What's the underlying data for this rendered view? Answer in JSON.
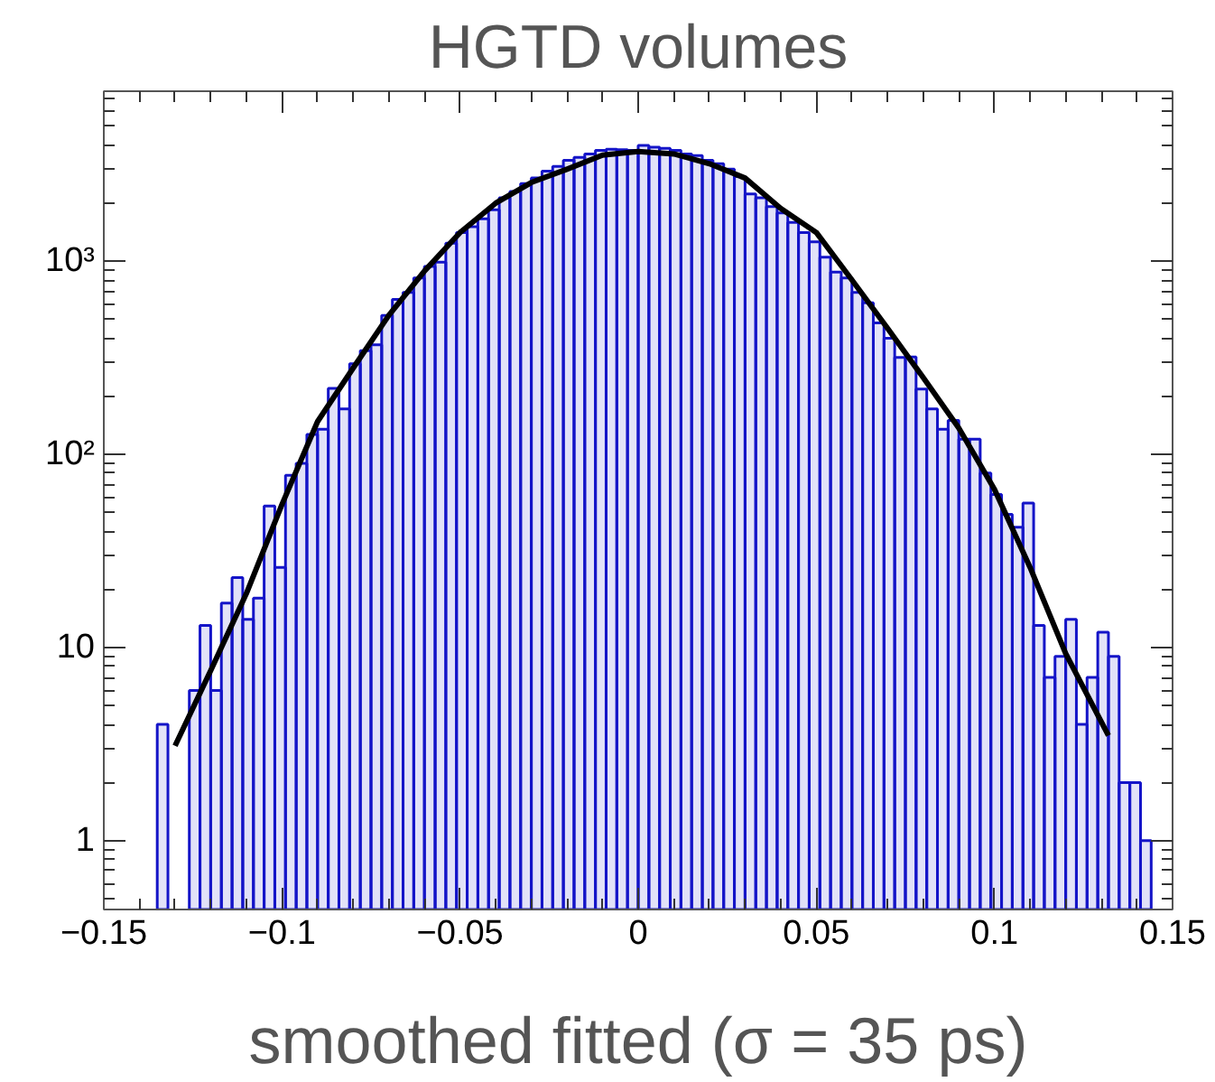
{
  "chart_data": {
    "type": "histogram",
    "title": "HGTD volumes",
    "xlabel": "smoothed fitted (σ = 35 ps)",
    "bins": [
      -0.15,
      -0.147,
      -0.144,
      -0.141,
      -0.138,
      -0.135,
      -0.132,
      -0.129,
      -0.126,
      -0.123,
      -0.12,
      -0.117,
      -0.114,
      -0.111,
      -0.108,
      -0.105,
      -0.102,
      -0.099,
      -0.096,
      -0.093,
      -0.09,
      -0.087,
      -0.084,
      -0.081,
      -0.078,
      -0.075,
      -0.072,
      -0.069,
      -0.066,
      -0.063,
      -0.06,
      -0.057,
      -0.054,
      -0.051,
      -0.048,
      -0.045,
      -0.042,
      -0.039,
      -0.036,
      -0.033,
      -0.03,
      -0.027,
      -0.024,
      -0.021,
      -0.018,
      -0.015,
      -0.012,
      -0.009,
      -0.006,
      -0.003,
      0,
      0.003,
      0.006,
      0.009,
      0.012,
      0.015,
      0.018,
      0.021,
      0.024,
      0.027,
      0.03,
      0.033,
      0.036,
      0.039,
      0.042,
      0.045,
      0.048,
      0.051,
      0.054,
      0.057,
      0.06,
      0.063,
      0.066,
      0.069,
      0.072,
      0.075,
      0.078,
      0.081,
      0.084,
      0.087,
      0.09,
      0.093,
      0.096,
      0.099,
      0.102,
      0.105,
      0.108,
      0.111,
      0.114,
      0.117,
      0.12,
      0.123,
      0.126,
      0.129,
      0.132,
      0.135,
      0.138,
      0.141,
      0.144,
      0.147,
      0.15
    ],
    "series": [
      {
        "color": "#1414c8",
        "values": [
          null,
          null,
          null,
          null,
          null,
          4,
          null,
          null,
          6,
          13,
          6,
          17,
          23,
          14,
          18,
          54,
          26,
          78,
          90,
          127,
          135,
          220,
          172,
          295,
          345,
          370,
          525,
          635,
          690,
          820,
          940,
          990,
          1240,
          1410,
          1510,
          1660,
          1850,
          2130,
          2300,
          2530,
          2700,
          2930,
          3100,
          3330,
          3450,
          3600,
          3750,
          3800,
          3780,
          3750,
          3980,
          3900,
          3850,
          3750,
          3600,
          3530,
          3330,
          3200,
          3000,
          2750,
          2230,
          2130,
          1920,
          1780,
          1590,
          1410,
          1260,
          1050,
          880,
          820,
          690,
          610,
          480,
          400,
          318,
          320,
          218,
          172,
          135,
          150,
          120,
          120,
          80,
          62,
          49,
          42,
          56,
          13,
          7,
          9,
          14,
          4,
          7,
          12,
          9,
          2,
          2,
          1,
          null,
          null
        ]
      },
      {
        "type": "line",
        "color": "#000000",
        "x": [
          -0.13,
          -0.12,
          -0.11,
          -0.1,
          -0.09,
          -0.08,
          -0.07,
          -0.06,
          -0.05,
          -0.04,
          -0.03,
          -0.02,
          -0.01,
          0,
          0.01,
          0.02,
          0.03,
          0.04,
          0.05,
          0.06,
          0.07,
          0.08,
          0.09,
          0.1,
          0.11,
          0.12,
          0.132
        ],
        "values": [
          3.1,
          7.6,
          19,
          55,
          148,
          280,
          525,
          890,
          1410,
          2000,
          2560,
          3000,
          3550,
          3700,
          3600,
          3200,
          2700,
          1880,
          1410,
          800,
          450,
          250,
          137,
          66,
          26,
          9.3,
          3.5
        ]
      }
    ],
    "xlim": [
      -0.15,
      0.15
    ],
    "ylim": [
      0.44,
      7600
    ],
    "log": "y",
    "xticks": [
      {
        "value": -0.15,
        "label": "−0.15"
      },
      {
        "value": -0.1,
        "label": "−0.1"
      },
      {
        "value": -0.05,
        "label": "−0.05"
      },
      0,
      0.05,
      0.1,
      0.15
    ],
    "yticks": [
      1,
      10,
      {
        "value": 100,
        "label": "10²"
      },
      {
        "value": 1000,
        "label": "10³"
      }
    ],
    "grid": false
  }
}
